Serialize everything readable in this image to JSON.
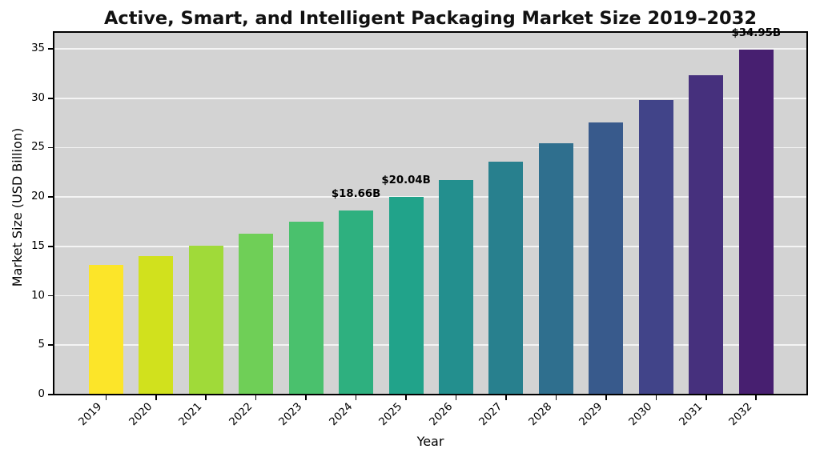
{
  "title": "Active, Smart, and Intelligent Packaging Market Size 2019–2032",
  "chart_data": {
    "type": "bar",
    "title": "Active, Smart, and Intelligent Packaging Market Size 2019–2032",
    "xlabel": "Year",
    "ylabel": "Market Size (USD Billion)",
    "categories": [
      "2019",
      "2020",
      "2021",
      "2022",
      "2023",
      "2024",
      "2025",
      "2026",
      "2027",
      "2028",
      "2029",
      "2030",
      "2031",
      "2032"
    ],
    "values": [
      13.1,
      14.02,
      15.07,
      16.26,
      17.52,
      18.66,
      20.04,
      21.71,
      23.54,
      25.46,
      27.55,
      29.84,
      32.33,
      34.95
    ],
    "bar_colors": [
      "#fce529",
      "#d1e11d",
      "#a0da39",
      "#6fcf57",
      "#4ac16d",
      "#2eb07f",
      "#21a38a",
      "#238f8e",
      "#28808e",
      "#2f6f8e",
      "#385a8c",
      "#414489",
      "#46307d",
      "#471f70"
    ],
    "annotations": [
      {
        "index": 5,
        "text": "$18.66B"
      },
      {
        "index": 6,
        "text": "$20.04B"
      },
      {
        "index": 13,
        "text": "$34.95B"
      }
    ],
    "yticks": [
      0,
      5,
      10,
      15,
      20,
      25,
      30,
      35
    ],
    "ylim": [
      0,
      36.7
    ],
    "grid": true,
    "legend": false,
    "plot_background": "#d3d3d3",
    "gridline_color": "rgba(255,255,255,0.75)",
    "colormap": "viridis reversed"
  }
}
